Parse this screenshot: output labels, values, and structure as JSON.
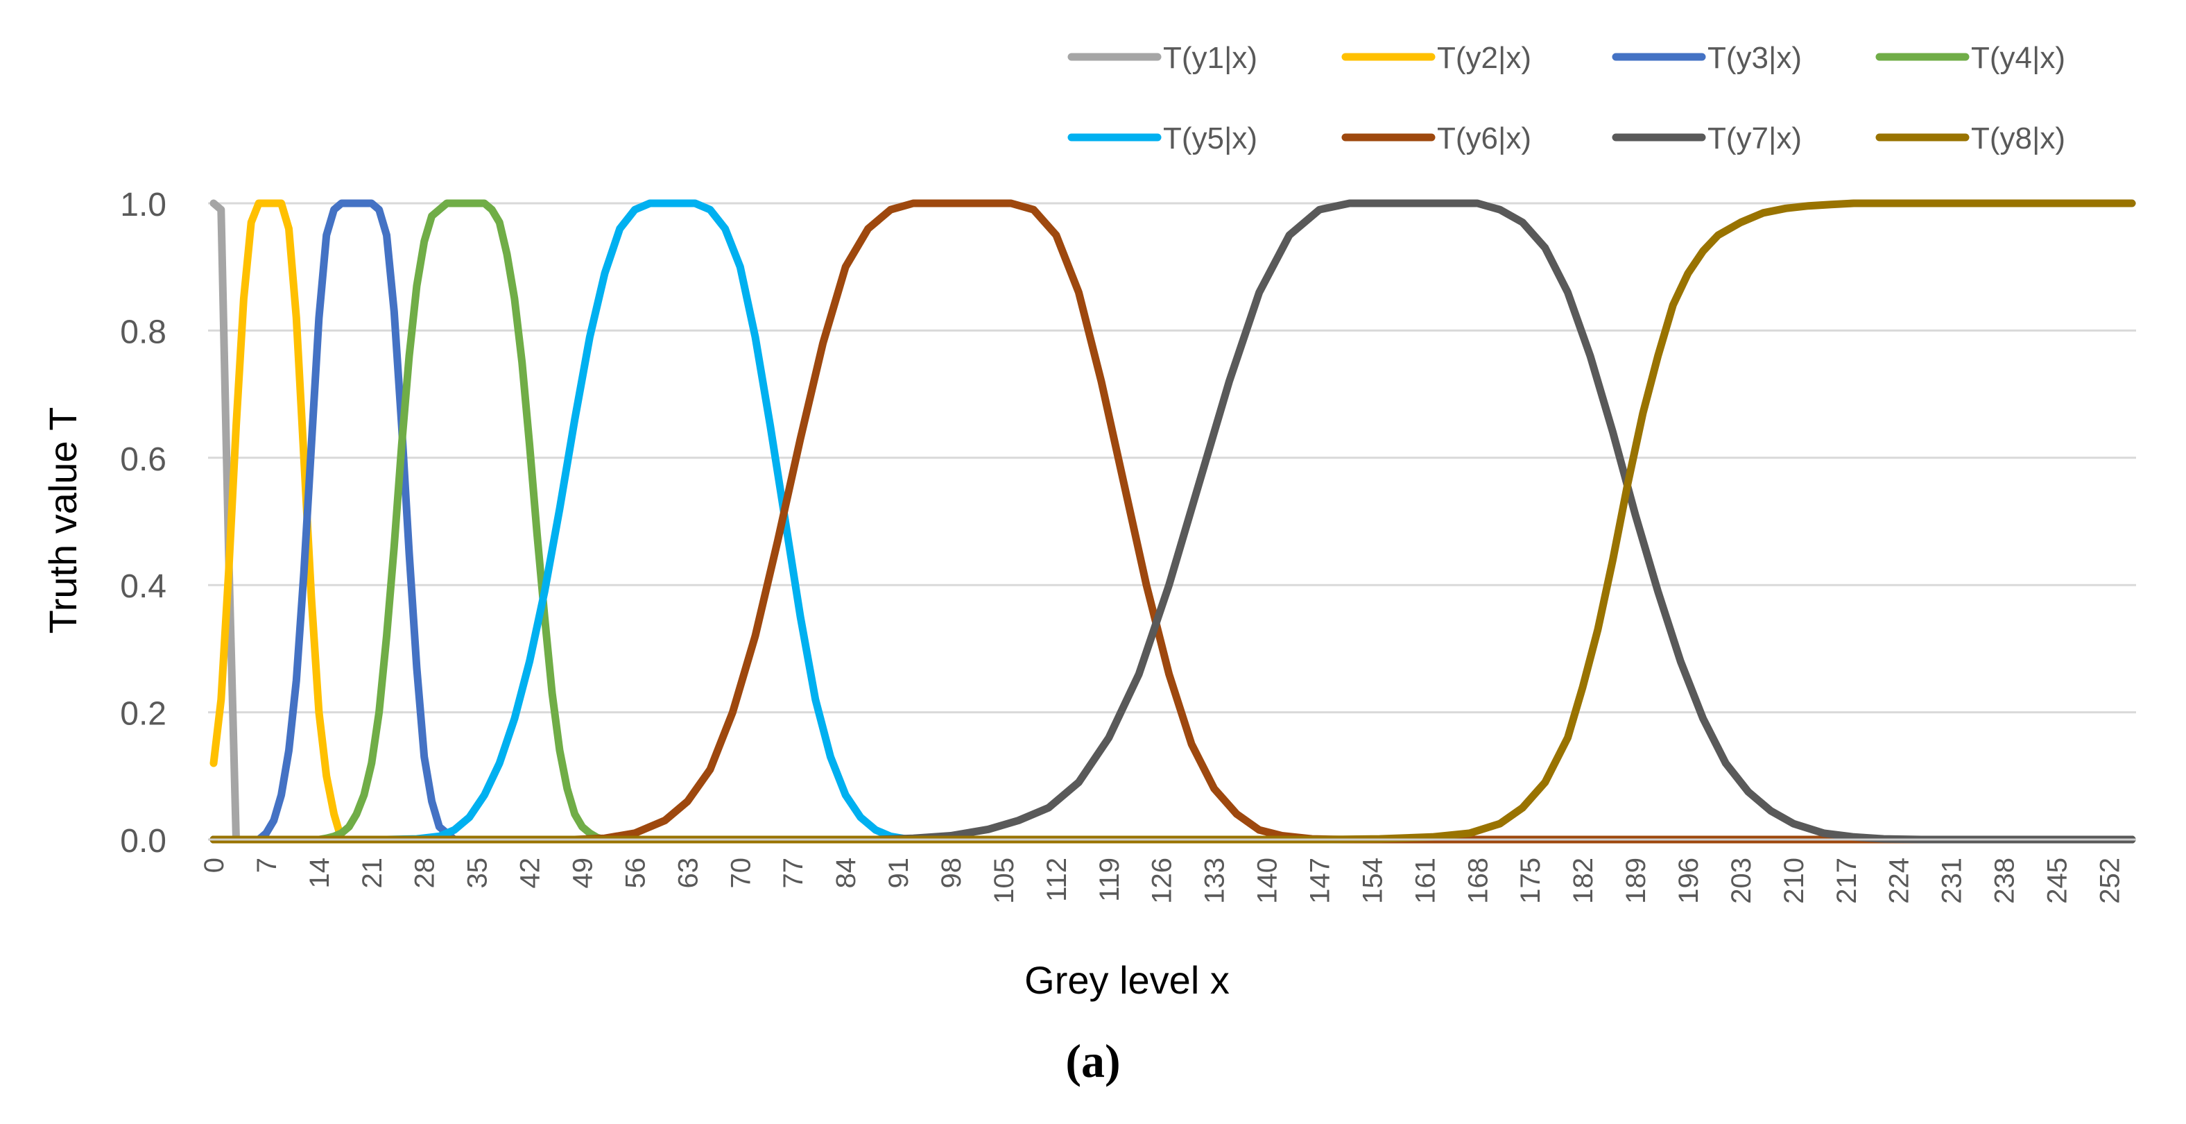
{
  "figure": {
    "caption": "(a)"
  },
  "chart_data": {
    "type": "line",
    "title": "",
    "xlabel": "Grey level x",
    "ylabel": "Truth value T",
    "xlim": [
      0,
      255
    ],
    "ylim": [
      0,
      1
    ],
    "x_ticks": [
      0,
      7,
      14,
      21,
      28,
      35,
      42,
      49,
      56,
      63,
      70,
      77,
      84,
      91,
      98,
      105,
      112,
      119,
      126,
      133,
      140,
      147,
      154,
      161,
      168,
      175,
      182,
      189,
      196,
      203,
      210,
      217,
      224,
      231,
      238,
      245,
      252
    ],
    "y_ticks": [
      "0.0",
      "0.2",
      "0.4",
      "0.6",
      "0.8",
      "1.0"
    ],
    "y_tick_values": [
      0,
      0.2,
      0.4,
      0.6,
      0.8,
      1.0
    ],
    "grid": "horizontal",
    "legend_position": "top-right",
    "series": [
      {
        "name": "T(y1|x)",
        "color": "#a5a5a5",
        "x": [
          0,
          1,
          2,
          3,
          4,
          255
        ],
        "values": [
          1.0,
          0.99,
          0.45,
          0.0,
          0.0,
          0.0
        ]
      },
      {
        "name": "T(y2|x)",
        "color": "#ffc000",
        "x": [
          0,
          1,
          2,
          3,
          4,
          5,
          6,
          7,
          8,
          9,
          10,
          11,
          12,
          13,
          14,
          15,
          16,
          17,
          18,
          255
        ],
        "values": [
          0.12,
          0.22,
          0.42,
          0.65,
          0.85,
          0.97,
          1.0,
          1.0,
          1.0,
          1.0,
          0.96,
          0.82,
          0.6,
          0.38,
          0.2,
          0.1,
          0.04,
          0.0,
          0.0,
          0.0
        ]
      },
      {
        "name": "T(y3|x)",
        "color": "#4472c4",
        "x": [
          0,
          5,
          6,
          7,
          8,
          9,
          10,
          11,
          12,
          13,
          14,
          15,
          16,
          17,
          18,
          19,
          20,
          21,
          22,
          23,
          24,
          25,
          26,
          27,
          28,
          29,
          30,
          31,
          32,
          33,
          34,
          255
        ],
        "values": [
          0.0,
          0.0,
          0.0,
          0.01,
          0.03,
          0.07,
          0.14,
          0.25,
          0.42,
          0.62,
          0.82,
          0.95,
          0.99,
          1.0,
          1.0,
          1.0,
          1.0,
          1.0,
          0.99,
          0.95,
          0.83,
          0.65,
          0.45,
          0.27,
          0.13,
          0.06,
          0.02,
          0.01,
          0.0,
          0.0,
          0.0,
          0.0
        ]
      },
      {
        "name": "T(y4|x)",
        "color": "#70ad47",
        "x": [
          0,
          12,
          14,
          15,
          16,
          17,
          18,
          19,
          20,
          21,
          22,
          23,
          24,
          25,
          26,
          27,
          28,
          29,
          30,
          31,
          32,
          33,
          34,
          35,
          36,
          37,
          38,
          39,
          40,
          41,
          42,
          43,
          44,
          45,
          46,
          47,
          48,
          49,
          50,
          51,
          52,
          53,
          255
        ],
        "values": [
          0.0,
          0.0,
          0.0,
          0.002,
          0.005,
          0.01,
          0.02,
          0.04,
          0.07,
          0.12,
          0.2,
          0.32,
          0.46,
          0.62,
          0.76,
          0.87,
          0.94,
          0.98,
          0.99,
          1.0,
          1.0,
          1.0,
          1.0,
          1.0,
          1.0,
          0.99,
          0.97,
          0.92,
          0.85,
          0.75,
          0.62,
          0.48,
          0.35,
          0.23,
          0.14,
          0.08,
          0.04,
          0.02,
          0.01,
          0.003,
          0.0,
          0.0,
          0.0
        ]
      },
      {
        "name": "T(y5|x)",
        "color": "#00b0f0",
        "x": [
          0,
          23,
          27,
          30,
          32,
          34,
          36,
          38,
          40,
          42,
          44,
          46,
          48,
          50,
          52,
          54,
          56,
          58,
          60,
          62,
          64,
          66,
          68,
          70,
          72,
          74,
          76,
          78,
          80,
          82,
          84,
          86,
          88,
          90,
          92,
          94,
          255
        ],
        "values": [
          0.0,
          0.0,
          0.001,
          0.005,
          0.015,
          0.035,
          0.07,
          0.12,
          0.19,
          0.28,
          0.39,
          0.52,
          0.66,
          0.79,
          0.89,
          0.96,
          0.99,
          1.0,
          1.0,
          1.0,
          1.0,
          0.99,
          0.96,
          0.9,
          0.79,
          0.65,
          0.5,
          0.35,
          0.22,
          0.13,
          0.07,
          0.035,
          0.015,
          0.005,
          0.001,
          0.0,
          0.0
        ]
      },
      {
        "name": "T(y6|x)",
        "color": "#9e480e",
        "x": [
          0,
          48,
          52,
          56,
          60,
          63,
          66,
          69,
          72,
          75,
          78,
          81,
          84,
          87,
          90,
          93,
          96,
          100,
          104,
          106,
          109,
          112,
          115,
          118,
          121,
          124,
          127,
          130,
          133,
          136,
          139,
          142,
          146,
          150,
          255
        ],
        "values": [
          0.0,
          0.0,
          0.002,
          0.01,
          0.03,
          0.06,
          0.11,
          0.2,
          0.32,
          0.47,
          0.63,
          0.78,
          0.9,
          0.96,
          0.99,
          1.0,
          1.0,
          1.0,
          1.0,
          1.0,
          0.99,
          0.95,
          0.86,
          0.72,
          0.56,
          0.4,
          0.26,
          0.15,
          0.08,
          0.04,
          0.015,
          0.006,
          0.001,
          0.0,
          0.0
        ]
      },
      {
        "name": "T(y7|x)",
        "color": "#595959",
        "x": [
          0,
          88,
          93,
          98,
          103,
          107,
          111,
          115,
          119,
          123,
          127,
          131,
          135,
          139,
          143,
          147,
          151,
          155,
          160,
          165,
          168,
          171,
          174,
          177,
          180,
          183,
          186,
          189,
          192,
          195,
          198,
          201,
          204,
          207,
          210,
          214,
          218,
          222,
          227,
          232,
          255
        ],
        "values": [
          0.0,
          0.0,
          0.002,
          0.006,
          0.016,
          0.03,
          0.05,
          0.09,
          0.16,
          0.26,
          0.4,
          0.56,
          0.72,
          0.86,
          0.95,
          0.99,
          1.0,
          1.0,
          1.0,
          1.0,
          1.0,
          0.99,
          0.97,
          0.93,
          0.86,
          0.76,
          0.64,
          0.51,
          0.39,
          0.28,
          0.19,
          0.12,
          0.075,
          0.045,
          0.025,
          0.01,
          0.004,
          0.001,
          0.0,
          0.0,
          0.0
        ]
      },
      {
        "name": "T(y8|x)",
        "color": "#997300",
        "x": [
          0,
          148,
          155,
          162,
          167,
          171,
          174,
          177,
          180,
          182,
          184,
          186,
          188,
          190,
          192,
          194,
          196,
          198,
          200,
          203,
          206,
          209,
          212,
          215,
          218,
          221,
          255
        ],
        "values": [
          0.0,
          0.0,
          0.001,
          0.004,
          0.01,
          0.025,
          0.05,
          0.09,
          0.16,
          0.24,
          0.33,
          0.44,
          0.56,
          0.67,
          0.76,
          0.84,
          0.89,
          0.925,
          0.95,
          0.97,
          0.985,
          0.992,
          0.996,
          0.998,
          1.0,
          1.0,
          1.0
        ]
      }
    ]
  }
}
